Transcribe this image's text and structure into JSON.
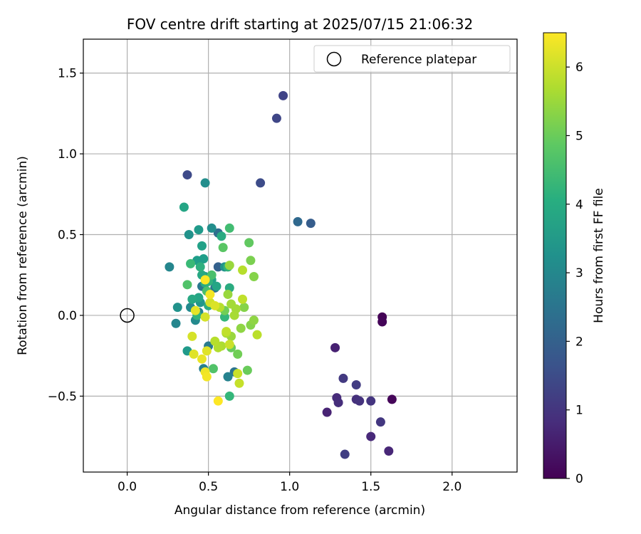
{
  "chart_data": {
    "type": "scatter",
    "title": "FOV centre drift starting at 2025/07/15 21:06:32",
    "xlabel": "Angular distance from reference (arcmin)",
    "ylabel": "Rotation from reference (arcmin)",
    "xlim": [
      -0.27,
      2.4
    ],
    "ylim": [
      -0.97,
      1.71
    ],
    "xticks": [
      0.0,
      0.5,
      1.0,
      1.5,
      2.0
    ],
    "xtick_labels": [
      "0.0",
      "0.5",
      "1.0",
      "1.5",
      "2.0"
    ],
    "yticks": [
      -0.5,
      0.0,
      0.5,
      1.0,
      1.5
    ],
    "ytick_labels": [
      "−0.5",
      "0.0",
      "0.5",
      "1.0",
      "1.5"
    ],
    "grid": true,
    "legend": {
      "placement": "top-right",
      "entries": [
        "Reference platepar"
      ]
    },
    "reference_point": {
      "x": 0.0,
      "y": 0.0,
      "label": "Reference platepar",
      "marker": "open-circle"
    },
    "colorbar": {
      "label": "Hours from first FF file",
      "colormap": "viridis",
      "range": [
        0,
        6.5
      ],
      "ticks": [
        0,
        1,
        2,
        3,
        4,
        5,
        6
      ],
      "tick_labels": [
        "0",
        "1",
        "2",
        "3",
        "4",
        "5",
        "6"
      ]
    },
    "points": [
      {
        "x": 1.57,
        "y": -0.01,
        "c": 0.05
      },
      {
        "x": 1.57,
        "y": -0.04,
        "c": 0.08
      },
      {
        "x": 1.63,
        "y": -0.52,
        "c": 0.1
      },
      {
        "x": 1.28,
        "y": -0.2,
        "c": 0.6
      },
      {
        "x": 1.23,
        "y": -0.6,
        "c": 0.65
      },
      {
        "x": 1.61,
        "y": -0.84,
        "c": 0.7
      },
      {
        "x": 1.5,
        "y": -0.75,
        "c": 0.75
      },
      {
        "x": 1.29,
        "y": -0.51,
        "c": 0.8
      },
      {
        "x": 1.3,
        "y": -0.54,
        "c": 0.85
      },
      {
        "x": 1.41,
        "y": -0.52,
        "c": 0.9
      },
      {
        "x": 1.43,
        "y": -0.53,
        "c": 0.95
      },
      {
        "x": 1.5,
        "y": -0.53,
        "c": 1.0
      },
      {
        "x": 1.56,
        "y": -0.66,
        "c": 1.05
      },
      {
        "x": 1.33,
        "y": -0.39,
        "c": 1.1
      },
      {
        "x": 1.41,
        "y": -0.43,
        "c": 1.15
      },
      {
        "x": 1.34,
        "y": -0.86,
        "c": 1.2
      },
      {
        "x": 0.96,
        "y": 1.36,
        "c": 1.3
      },
      {
        "x": 0.92,
        "y": 1.22,
        "c": 1.35
      },
      {
        "x": 0.37,
        "y": 0.87,
        "c": 1.45
      },
      {
        "x": 0.82,
        "y": 0.82,
        "c": 1.5
      },
      {
        "x": 1.13,
        "y": 0.57,
        "c": 1.9
      },
      {
        "x": 1.05,
        "y": 0.58,
        "c": 2.2
      },
      {
        "x": 0.56,
        "y": 0.3,
        "c": 2.0
      },
      {
        "x": 0.56,
        "y": 0.51,
        "c": 2.3
      },
      {
        "x": 0.54,
        "y": 0.17,
        "c": 2.4
      },
      {
        "x": 0.66,
        "y": -0.35,
        "c": 2.5
      },
      {
        "x": 0.46,
        "y": 0.18,
        "c": 2.6
      },
      {
        "x": 0.5,
        "y": -0.19,
        "c": 2.7
      },
      {
        "x": 0.47,
        "y": -0.33,
        "c": 2.8
      },
      {
        "x": 0.62,
        "y": -0.38,
        "c": 2.9
      },
      {
        "x": 0.44,
        "y": 0.02,
        "c": 2.95
      },
      {
        "x": 0.26,
        "y": 0.3,
        "c": 3.0
      },
      {
        "x": 0.3,
        "y": -0.05,
        "c": 3.0
      },
      {
        "x": 0.42,
        "y": -0.03,
        "c": 3.1
      },
      {
        "x": 0.39,
        "y": 0.05,
        "c": 3.1
      },
      {
        "x": 0.48,
        "y": 0.82,
        "c": 3.2
      },
      {
        "x": 0.52,
        "y": 0.54,
        "c": 3.2
      },
      {
        "x": 0.38,
        "y": 0.5,
        "c": 3.3
      },
      {
        "x": 0.31,
        "y": 0.05,
        "c": 3.3
      },
      {
        "x": 0.6,
        "y": 0.3,
        "c": 3.35
      },
      {
        "x": 0.48,
        "y": 0.24,
        "c": 3.4
      },
      {
        "x": 0.45,
        "y": 0.08,
        "c": 3.4
      },
      {
        "x": 0.44,
        "y": 0.53,
        "c": 3.5
      },
      {
        "x": 0.37,
        "y": -0.22,
        "c": 3.5
      },
      {
        "x": 0.43,
        "y": 0.34,
        "c": 3.6
      },
      {
        "x": 0.47,
        "y": 0.35,
        "c": 3.6
      },
      {
        "x": 0.46,
        "y": 0.43,
        "c": 3.7
      },
      {
        "x": 0.52,
        "y": 0.22,
        "c": 3.7
      },
      {
        "x": 0.55,
        "y": 0.18,
        "c": 3.8
      },
      {
        "x": 0.35,
        "y": 0.67,
        "c": 3.8
      },
      {
        "x": 0.44,
        "y": 0.11,
        "c": 3.8
      },
      {
        "x": 0.4,
        "y": 0.1,
        "c": 3.9
      },
      {
        "x": 0.46,
        "y": 0.25,
        "c": 3.9
      },
      {
        "x": 0.58,
        "y": 0.49,
        "c": 3.95
      },
      {
        "x": 0.48,
        "y": 0.2,
        "c": 4.0
      },
      {
        "x": 0.5,
        "y": 0.06,
        "c": 4.0
      },
      {
        "x": 0.63,
        "y": 0.17,
        "c": 4.0
      },
      {
        "x": 0.45,
        "y": 0.3,
        "c": 4.1
      },
      {
        "x": 0.62,
        "y": 0.3,
        "c": 4.2
      },
      {
        "x": 0.5,
        "y": 0.21,
        "c": 4.2
      },
      {
        "x": 0.43,
        "y": 0.0,
        "c": 4.25
      },
      {
        "x": 0.6,
        "y": -0.01,
        "c": 4.3
      },
      {
        "x": 0.63,
        "y": -0.5,
        "c": 4.3
      },
      {
        "x": 0.39,
        "y": 0.32,
        "c": 4.4
      },
      {
        "x": 0.63,
        "y": 0.54,
        "c": 4.5
      },
      {
        "x": 0.52,
        "y": 0.25,
        "c": 4.6
      },
      {
        "x": 0.49,
        "y": 0.15,
        "c": 4.6
      },
      {
        "x": 0.53,
        "y": -0.33,
        "c": 4.7
      },
      {
        "x": 0.37,
        "y": 0.19,
        "c": 4.7
      },
      {
        "x": 0.59,
        "y": 0.42,
        "c": 4.8
      },
      {
        "x": 0.75,
        "y": 0.45,
        "c": 4.9
      },
      {
        "x": 0.74,
        "y": -0.34,
        "c": 5.0
      },
      {
        "x": 0.64,
        "y": -0.2,
        "c": 5.0
      },
      {
        "x": 0.68,
        "y": -0.24,
        "c": 5.1
      },
      {
        "x": 0.6,
        "y": 0.03,
        "c": 5.1
      },
      {
        "x": 0.76,
        "y": 0.34,
        "c": 5.2
      },
      {
        "x": 0.78,
        "y": 0.24,
        "c": 5.3
      },
      {
        "x": 0.72,
        "y": 0.05,
        "c": 5.3
      },
      {
        "x": 0.76,
        "y": -0.06,
        "c": 5.3
      },
      {
        "x": 0.78,
        "y": -0.03,
        "c": 5.4
      },
      {
        "x": 0.7,
        "y": -0.08,
        "c": 5.4
      },
      {
        "x": 0.64,
        "y": -0.13,
        "c": 5.5
      },
      {
        "x": 0.63,
        "y": 0.31,
        "c": 5.5
      },
      {
        "x": 0.62,
        "y": 0.13,
        "c": 5.5
      },
      {
        "x": 0.64,
        "y": 0.07,
        "c": 5.6
      },
      {
        "x": 0.67,
        "y": 0.04,
        "c": 5.6
      },
      {
        "x": 0.66,
        "y": 0.0,
        "c": 5.65
      },
      {
        "x": 0.61,
        "y": -0.11,
        "c": 5.7
      },
      {
        "x": 0.58,
        "y": -0.19,
        "c": 5.7
      },
      {
        "x": 0.56,
        "y": -0.2,
        "c": 5.75
      },
      {
        "x": 0.54,
        "y": -0.16,
        "c": 5.8
      },
      {
        "x": 0.57,
        "y": 0.05,
        "c": 5.8
      },
      {
        "x": 0.71,
        "y": 0.28,
        "c": 5.8
      },
      {
        "x": 0.8,
        "y": -0.12,
        "c": 5.85
      },
      {
        "x": 0.71,
        "y": 0.1,
        "c": 5.9
      },
      {
        "x": 0.61,
        "y": -0.1,
        "c": 5.9
      },
      {
        "x": 0.69,
        "y": -0.42,
        "c": 5.95
      },
      {
        "x": 0.68,
        "y": -0.36,
        "c": 6.0
      },
      {
        "x": 0.63,
        "y": -0.18,
        "c": 6.0
      },
      {
        "x": 0.51,
        "y": 0.08,
        "c": 6.05
      },
      {
        "x": 0.48,
        "y": -0.01,
        "c": 6.1
      },
      {
        "x": 0.4,
        "y": -0.13,
        "c": 6.1
      },
      {
        "x": 0.54,
        "y": 0.06,
        "c": 6.15
      },
      {
        "x": 0.49,
        "y": -0.22,
        "c": 6.2
      },
      {
        "x": 0.41,
        "y": -0.24,
        "c": 6.2
      },
      {
        "x": 0.42,
        "y": 0.03,
        "c": 6.25
      },
      {
        "x": 0.46,
        "y": -0.27,
        "c": 6.3
      },
      {
        "x": 0.48,
        "y": -0.35,
        "c": 6.35
      },
      {
        "x": 0.49,
        "y": -0.38,
        "c": 6.4
      },
      {
        "x": 0.51,
        "y": 0.13,
        "c": 6.4
      },
      {
        "x": 0.48,
        "y": 0.22,
        "c": 6.5
      },
      {
        "x": 0.56,
        "y": -0.53,
        "c": 6.5
      }
    ]
  }
}
